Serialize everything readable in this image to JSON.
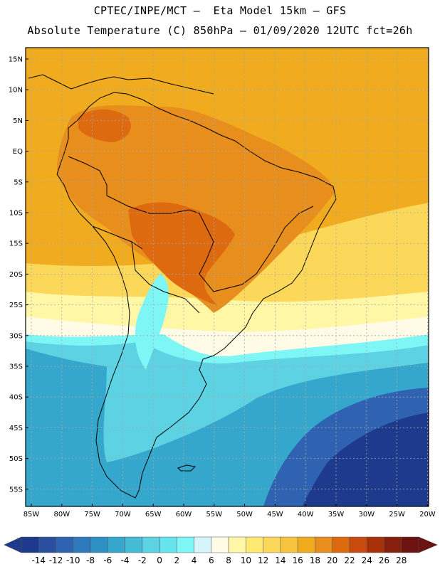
{
  "header": {
    "line1": "CPTEC/INPE/MCT –  Eta Model 15km – GFS",
    "line2": "Absolute Temperature (C) 850hPa – 01/09/2020 12UTC fct=26h"
  },
  "axes": {
    "lat_labels": [
      "15N",
      "10N",
      "5N",
      "EQ",
      "5S",
      "10S",
      "15S",
      "20S",
      "25S",
      "30S",
      "35S",
      "40S",
      "45S",
      "50S",
      "55S"
    ],
    "lon_labels": [
      "85W",
      "80W",
      "75W",
      "70W",
      "65W",
      "60W",
      "55W",
      "50W",
      "45W",
      "40W",
      "35W",
      "30W",
      "25W",
      "20W"
    ]
  },
  "colorbar": {
    "labels": [
      "-14",
      "-12",
      "-10",
      "-8",
      "-6",
      "-4",
      "-2",
      "0",
      "2",
      "4",
      "6",
      "8",
      "10",
      "12",
      "14",
      "16",
      "18",
      "20",
      "22",
      "24",
      "26",
      "28"
    ],
    "colors": [
      "#1d3a8c",
      "#2a4fa0",
      "#2f62b0",
      "#2f7abc",
      "#2f90c4",
      "#35a6cc",
      "#45bcd6",
      "#5cd2e2",
      "#66e4ee",
      "#7ff6f6",
      "#d6f4fb",
      "#fffbe6",
      "#fff6a6",
      "#ffe970",
      "#fcd85a",
      "#f6c43c",
      "#f0ab1e",
      "#e88e1c",
      "#de6a10",
      "#c94a0e",
      "#a8300b",
      "#84200d",
      "#6c1210"
    ]
  },
  "regions": {
    "north_tropics": "#f0ab1e",
    "amazon_warm": "#e88e1c",
    "hot_core": "#de6a10",
    "subtropic_yellow": "#fcd85a",
    "pale_yellow": "#fff6a6",
    "cream": "#fffbe6",
    "light_cyan": "#7ff6f6",
    "cyan": "#5cd2e2",
    "mid_blue": "#35a6cc",
    "deep_blue": "#2f62b0",
    "darkest_blue": "#1d3a8c"
  }
}
